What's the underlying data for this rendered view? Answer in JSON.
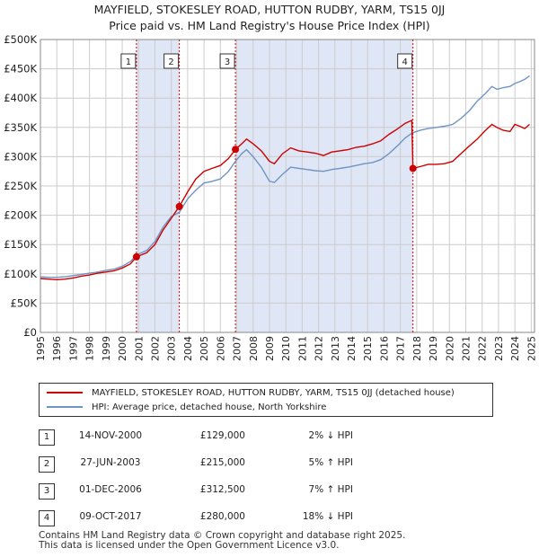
{
  "chart_data": {
    "type": "line",
    "title": "MAYFIELD, STOKESLEY ROAD, HUTTON RUDBY, YARM, TS15 0JJ",
    "subtitle": "Price paid vs. HM Land Registry's House Price Index (HPI)",
    "xlim": [
      1995,
      2025.2
    ],
    "ylim": [
      0,
      500000
    ],
    "x_ticks": [
      1995,
      1996,
      1997,
      1998,
      1999,
      2000,
      2001,
      2002,
      2003,
      2004,
      2005,
      2006,
      2007,
      2008,
      2009,
      2010,
      2011,
      2012,
      2013,
      2014,
      2015,
      2016,
      2017,
      2018,
      2019,
      2020,
      2021,
      2022,
      2023,
      2024,
      2025
    ],
    "y_ticks": [
      0,
      50000,
      100000,
      150000,
      200000,
      250000,
      300000,
      350000,
      400000,
      450000,
      500000
    ],
    "y_tick_labels": [
      "£0",
      "£50K",
      "£100K",
      "£150K",
      "£200K",
      "£250K",
      "£300K",
      "£350K",
      "£400K",
      "£450K",
      "£500K"
    ],
    "grid": true,
    "series": [
      {
        "name": "MAYFIELD, STOKESLEY ROAD, HUTTON RUDBY, YARM, TS15 0JJ (detached house)",
        "color": "#cc0000",
        "points": [
          [
            1995,
            92000
          ],
          [
            1995.5,
            91000
          ],
          [
            1996,
            90000
          ],
          [
            1996.5,
            91000
          ],
          [
            1997,
            93000
          ],
          [
            1997.5,
            96000
          ],
          [
            1998,
            98000
          ],
          [
            1998.5,
            101000
          ],
          [
            1999,
            103000
          ],
          [
            1999.5,
            105000
          ],
          [
            2000,
            110000
          ],
          [
            2000.5,
            117000
          ],
          [
            2000.87,
            129000
          ],
          [
            2001.5,
            136000
          ],
          [
            2002,
            150000
          ],
          [
            2002.5,
            175000
          ],
          [
            2003,
            195000
          ],
          [
            2003.49,
            215000
          ],
          [
            2004,
            240000
          ],
          [
            2004.5,
            262000
          ],
          [
            2005,
            275000
          ],
          [
            2005.5,
            280000
          ],
          [
            2006,
            285000
          ],
          [
            2006.5,
            297000
          ],
          [
            2006.92,
            312500
          ],
          [
            2007.3,
            322000
          ],
          [
            2007.6,
            330000
          ],
          [
            2008,
            322000
          ],
          [
            2008.5,
            310000
          ],
          [
            2009,
            292000
          ],
          [
            2009.3,
            288000
          ],
          [
            2009.8,
            305000
          ],
          [
            2010.3,
            315000
          ],
          [
            2010.8,
            310000
          ],
          [
            2011.3,
            308000
          ],
          [
            2011.8,
            306000
          ],
          [
            2012.3,
            302000
          ],
          [
            2012.8,
            308000
          ],
          [
            2013.3,
            310000
          ],
          [
            2013.8,
            312000
          ],
          [
            2014.3,
            316000
          ],
          [
            2014.8,
            318000
          ],
          [
            2015.3,
            322000
          ],
          [
            2015.8,
            327000
          ],
          [
            2016.3,
            338000
          ],
          [
            2016.8,
            347000
          ],
          [
            2017.3,
            357000
          ],
          [
            2017.7,
            362000
          ],
          [
            2017.77,
            280000
          ],
          [
            2018.2,
            283000
          ],
          [
            2018.7,
            287000
          ],
          [
            2019.2,
            287000
          ],
          [
            2019.7,
            288000
          ],
          [
            2020.2,
            292000
          ],
          [
            2020.7,
            305000
          ],
          [
            2021.2,
            318000
          ],
          [
            2021.7,
            330000
          ],
          [
            2022.2,
            345000
          ],
          [
            2022.6,
            355000
          ],
          [
            2022.9,
            350000
          ],
          [
            2023.3,
            345000
          ],
          [
            2023.7,
            343000
          ],
          [
            2024,
            355000
          ],
          [
            2024.3,
            352000
          ],
          [
            2024.6,
            348000
          ],
          [
            2024.9,
            355000
          ]
        ]
      },
      {
        "name": "HPI: Average price, detached house, North Yorkshire",
        "color": "#6f94c4",
        "points": [
          [
            1995,
            95000
          ],
          [
            1995.5,
            94000
          ],
          [
            1996,
            94000
          ],
          [
            1996.5,
            95000
          ],
          [
            1997,
            97000
          ],
          [
            1997.5,
            99000
          ],
          [
            1998,
            101000
          ],
          [
            1998.5,
            103000
          ],
          [
            1999,
            106000
          ],
          [
            1999.5,
            108000
          ],
          [
            2000,
            113000
          ],
          [
            2000.5,
            121000
          ],
          [
            2000.87,
            132000
          ],
          [
            2001.5,
            140000
          ],
          [
            2002,
            155000
          ],
          [
            2002.5,
            180000
          ],
          [
            2003,
            198000
          ],
          [
            2003.49,
            205000
          ],
          [
            2004,
            228000
          ],
          [
            2004.5,
            243000
          ],
          [
            2005,
            255000
          ],
          [
            2005.5,
            258000
          ],
          [
            2006,
            262000
          ],
          [
            2006.5,
            275000
          ],
          [
            2006.92,
            292000
          ],
          [
            2007.3,
            305000
          ],
          [
            2007.6,
            312000
          ],
          [
            2008,
            300000
          ],
          [
            2008.5,
            282000
          ],
          [
            2009,
            258000
          ],
          [
            2009.3,
            256000
          ],
          [
            2009.8,
            270000
          ],
          [
            2010.3,
            282000
          ],
          [
            2010.8,
            280000
          ],
          [
            2011.3,
            278000
          ],
          [
            2011.8,
            276000
          ],
          [
            2012.3,
            275000
          ],
          [
            2012.8,
            278000
          ],
          [
            2013.3,
            280000
          ],
          [
            2013.8,
            282000
          ],
          [
            2014.3,
            285000
          ],
          [
            2014.8,
            288000
          ],
          [
            2015.3,
            290000
          ],
          [
            2015.8,
            295000
          ],
          [
            2016.3,
            305000
          ],
          [
            2016.8,
            318000
          ],
          [
            2017.3,
            332000
          ],
          [
            2017.7,
            340000
          ],
          [
            2017.77,
            341000
          ],
          [
            2018.2,
            345000
          ],
          [
            2018.7,
            348000
          ],
          [
            2019.2,
            350000
          ],
          [
            2019.7,
            352000
          ],
          [
            2020.2,
            355000
          ],
          [
            2020.7,
            365000
          ],
          [
            2021.2,
            378000
          ],
          [
            2021.7,
            395000
          ],
          [
            2022.2,
            408000
          ],
          [
            2022.6,
            420000
          ],
          [
            2022.9,
            415000
          ],
          [
            2023.3,
            418000
          ],
          [
            2023.7,
            420000
          ],
          [
            2024,
            425000
          ],
          [
            2024.3,
            428000
          ],
          [
            2024.6,
            432000
          ],
          [
            2024.9,
            438000
          ]
        ]
      }
    ],
    "sales": [
      {
        "num": "1",
        "x": 2000.87,
        "price": 129000,
        "date": "14-NOV-2000",
        "price_label": "£129,000",
        "hpi": "2% ↓ HPI"
      },
      {
        "num": "2",
        "x": 2003.49,
        "price": 215000,
        "date": "27-JUN-2003",
        "price_label": "£215,000",
        "hpi": "5% ↑ HPI"
      },
      {
        "num": "3",
        "x": 2006.92,
        "price": 312500,
        "date": "01-DEC-2006",
        "price_label": "£312,500",
        "hpi": "7% ↑ HPI"
      },
      {
        "num": "4",
        "x": 2017.77,
        "price": 280000,
        "date": "09-OCT-2017",
        "price_label": "£280,000",
        "hpi": "18% ↓ HPI"
      }
    ],
    "shaded_ranges": [
      [
        2000.87,
        2003.49
      ],
      [
        2006.92,
        2017.77
      ]
    ],
    "legend": [
      "MAYFIELD, STOKESLEY ROAD, HUTTON RUDBY, YARM, TS15 0JJ (detached house)",
      "HPI: Average price, detached house, North Yorkshire"
    ],
    "colors": {
      "property": "#cc0000",
      "hpi": "#6f94c4",
      "shade": "#dfe6f5",
      "grid": "#cccccc",
      "marker_line": "#cc0000"
    }
  },
  "footer": {
    "line1": "Contains HM Land Registry data © Crown copyright and database right 2025.",
    "line2": "This data is licensed under the Open Government Licence v3.0."
  }
}
